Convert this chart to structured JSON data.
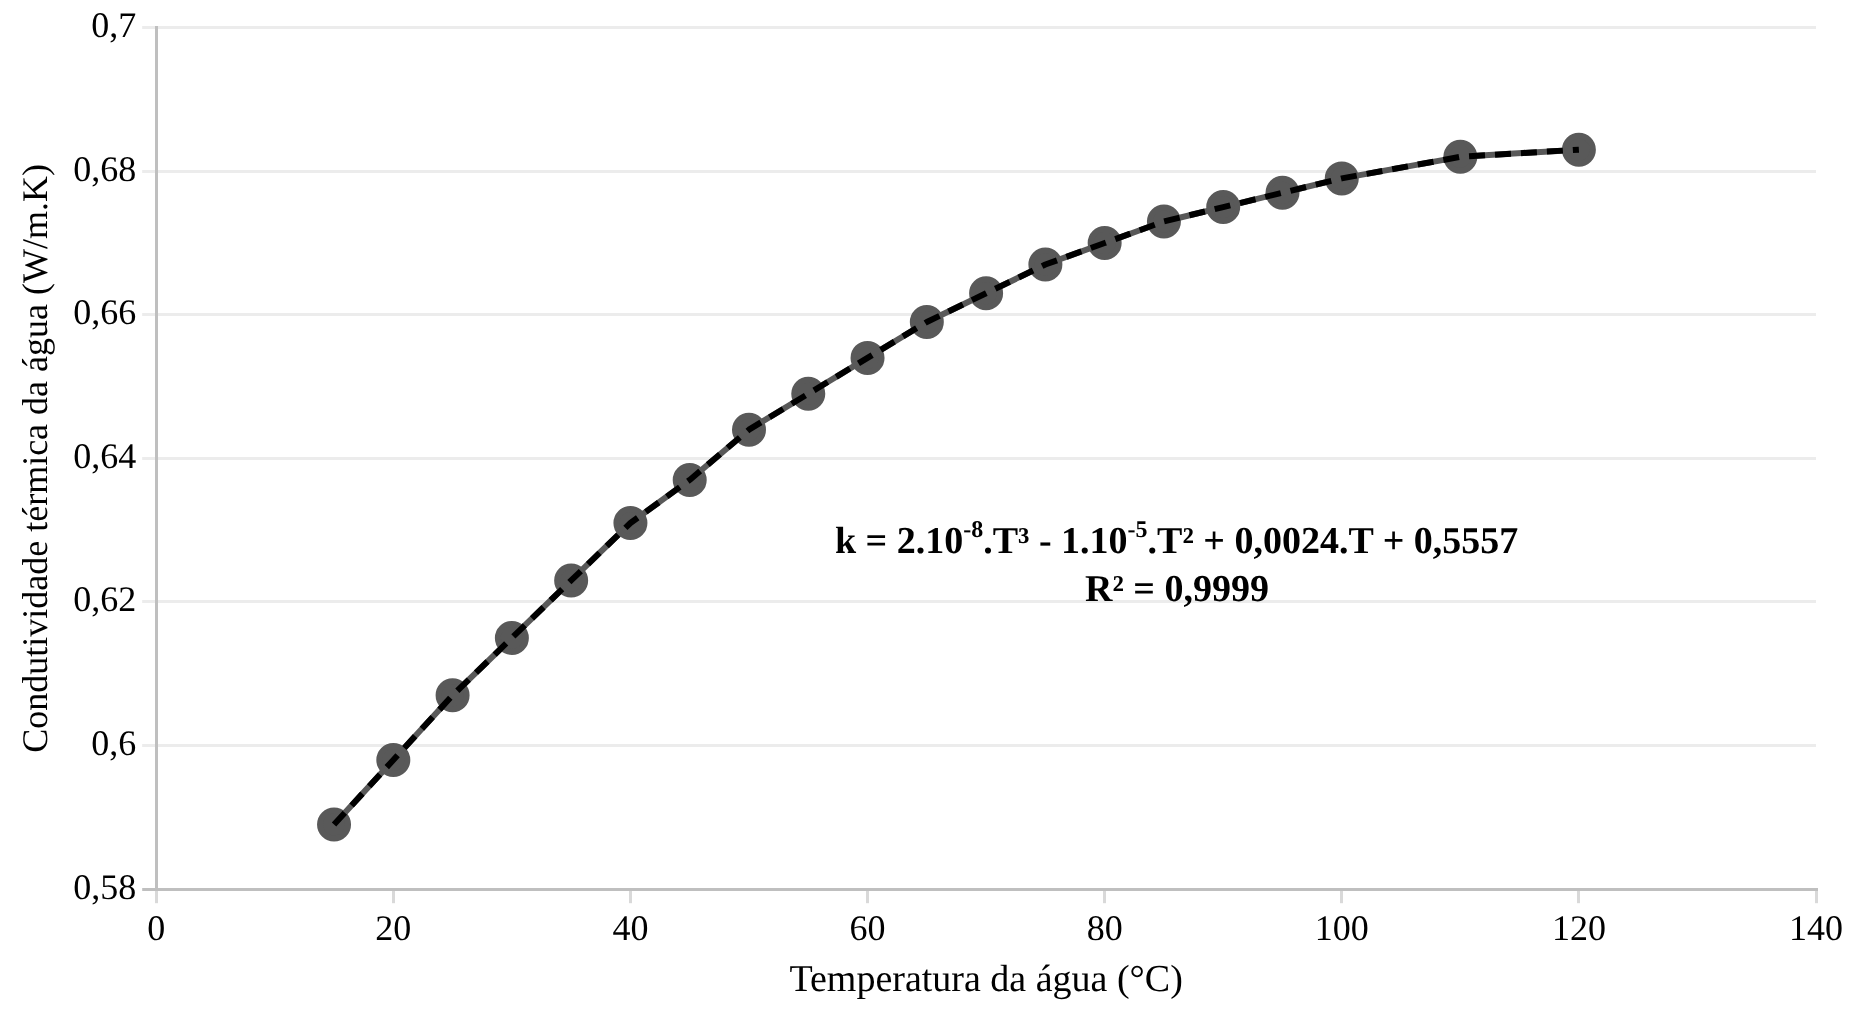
{
  "chart_data": {
    "type": "line",
    "xlabel": "Temperatura da água (°C)",
    "ylabel": "Condutividade térmica da água (W/m.K)",
    "x": [
      15,
      20,
      25,
      30,
      35,
      40,
      45,
      50,
      55,
      60,
      65,
      70,
      75,
      80,
      85,
      90,
      95,
      100,
      110,
      120
    ],
    "series": [
      {
        "color": "#595959",
        "marker": "circle",
        "line_style": "solid",
        "values": [
          0.589,
          0.598,
          0.607,
          0.615,
          0.623,
          0.631,
          0.637,
          0.644,
          0.649,
          0.654,
          0.659,
          0.663,
          0.667,
          0.67,
          0.673,
          0.675,
          0.677,
          0.679,
          0.682,
          0.683
        ]
      },
      {
        "color": "#000000",
        "marker": "none",
        "line_style": "dashed",
        "values": [
          0.589,
          0.598,
          0.607,
          0.615,
          0.623,
          0.631,
          0.637,
          0.644,
          0.649,
          0.654,
          0.659,
          0.663,
          0.667,
          0.67,
          0.673,
          0.675,
          0.677,
          0.679,
          0.682,
          0.683
        ]
      }
    ],
    "xlim": [
      0,
      140
    ],
    "xticks": [
      0,
      20,
      40,
      60,
      80,
      100,
      120,
      140
    ],
    "ylim": [
      0.58,
      0.7
    ],
    "yticks": [
      {
        "value": 0.58,
        "label": "0,58"
      },
      {
        "value": 0.6,
        "label": "0,6"
      },
      {
        "value": 0.62,
        "label": "0,62"
      },
      {
        "value": 0.64,
        "label": "0,64"
      },
      {
        "value": 0.66,
        "label": "0,66"
      },
      {
        "value": 0.68,
        "label": "0,68"
      },
      {
        "value": 0.7,
        "label": "0,7"
      }
    ],
    "grid": "y",
    "legend": false,
    "annotations": [
      "k = 2.10$^{-8}$.T³ - 1.10$^{-5}$.T² + 0,0024.T + 0,5557",
      "R² = 0,9999"
    ]
  }
}
